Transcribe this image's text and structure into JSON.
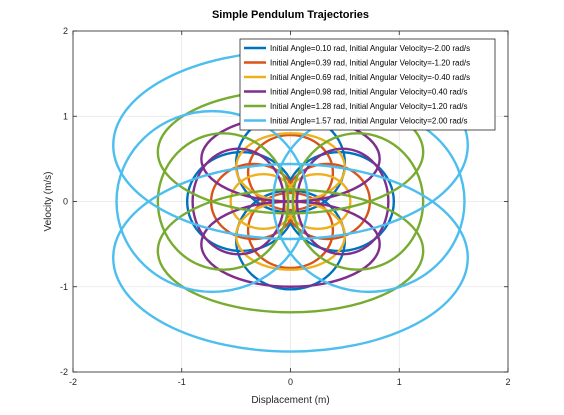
{
  "chart_data": {
    "type": "line",
    "title": "Simple Pendulum Trajectories",
    "xlabel": "Displacement (m)",
    "ylabel": "Velocity (m/s)",
    "xlim": [
      -2,
      2
    ],
    "ylim": [
      -2,
      2
    ],
    "xticks": [
      -2,
      -1,
      0,
      1,
      2
    ],
    "yticks": [
      -2,
      -1,
      0,
      1,
      2
    ],
    "xtick_labels": [
      "-2",
      "-1",
      "0",
      "1",
      "2"
    ],
    "ytick_labels": [
      "-2",
      "-1",
      "0",
      "1",
      "2"
    ],
    "grid": true,
    "legend_position": "top-right",
    "series": [
      {
        "name": "Initial Angle=0.10 rad, Initial Angular Velocity=-2.00 rad/s",
        "color": "#0072BD",
        "loops": [
          {
            "cx": -0.45,
            "cy": 0,
            "rx": 0.5,
            "ry": 0.58
          },
          {
            "cx": 0.45,
            "cy": 0,
            "rx": 0.5,
            "ry": 0.58
          },
          {
            "cx": 0,
            "cy": 0.45,
            "rx": 0.5,
            "ry": 0.58
          },
          {
            "cx": 0,
            "cy": -0.45,
            "rx": 0.5,
            "ry": 0.58
          }
        ]
      },
      {
        "name": "Initial Angle=0.39 rad, Initial Angular Velocity=-1.20 rad/s",
        "color": "#D95319",
        "loops": [
          {
            "cx": -0.34,
            "cy": 0,
            "rx": 0.39,
            "ry": 0.44
          },
          {
            "cx": 0.34,
            "cy": 0,
            "rx": 0.39,
            "ry": 0.44
          },
          {
            "cx": 0,
            "cy": 0.34,
            "rx": 0.39,
            "ry": 0.44
          },
          {
            "cx": 0,
            "cy": -0.34,
            "rx": 0.39,
            "ry": 0.44
          }
        ]
      },
      {
        "name": "Initial Angle=0.69 rad, Initial Angular Velocity=-0.40 rad/s",
        "color": "#EDB120",
        "loops": [
          {
            "cx": -0.25,
            "cy": 0,
            "rx": 0.3,
            "ry": 0.32
          },
          {
            "cx": 0.25,
            "cy": 0,
            "rx": 0.3,
            "ry": 0.32
          },
          {
            "cx": 0,
            "cy": 0.4,
            "rx": 0.5,
            "ry": 0.4
          },
          {
            "cx": 0,
            "cy": -0.4,
            "rx": 0.5,
            "ry": 0.4
          }
        ]
      },
      {
        "name": "Initial Angle=0.98 rad, Initial Angular Velocity=0.40 rad/s",
        "color": "#7E2F8E",
        "loops": [
          {
            "cx": -0.48,
            "cy": 0,
            "rx": 0.42,
            "ry": 0.62
          },
          {
            "cx": 0.48,
            "cy": 0,
            "rx": 0.42,
            "ry": 0.62
          },
          {
            "cx": 0,
            "cy": 0.5,
            "rx": 0.82,
            "ry": 0.5
          },
          {
            "cx": 0,
            "cy": -0.5,
            "rx": 0.82,
            "ry": 0.5
          }
        ]
      },
      {
        "name": "Initial Angle=1.28 rad, Initial Angular Velocity=1.20 rad/s",
        "color": "#77AC30",
        "loops": [
          {
            "cx": -0.62,
            "cy": 0,
            "rx": 0.6,
            "ry": 0.8
          },
          {
            "cx": 0.62,
            "cy": 0,
            "rx": 0.6,
            "ry": 0.8
          },
          {
            "cx": 0,
            "cy": 0.58,
            "rx": 1.22,
            "ry": 0.72
          },
          {
            "cx": 0,
            "cy": -0.58,
            "rx": 1.22,
            "ry": 0.72
          }
        ]
      },
      {
        "name": "Initial Angle=1.57 rad, Initial Angular Velocity=2.00 rad/s",
        "color": "#4DBEEE",
        "loops": [
          {
            "cx": -0.72,
            "cy": 0,
            "rx": 0.88,
            "ry": 1.06
          },
          {
            "cx": 0.72,
            "cy": 0,
            "rx": 0.88,
            "ry": 1.06
          },
          {
            "cx": 0,
            "cy": 0.66,
            "rx": 1.63,
            "ry": 1.1
          },
          {
            "cx": 0,
            "cy": -0.66,
            "rx": 1.63,
            "ry": 1.1
          }
        ]
      }
    ]
  }
}
